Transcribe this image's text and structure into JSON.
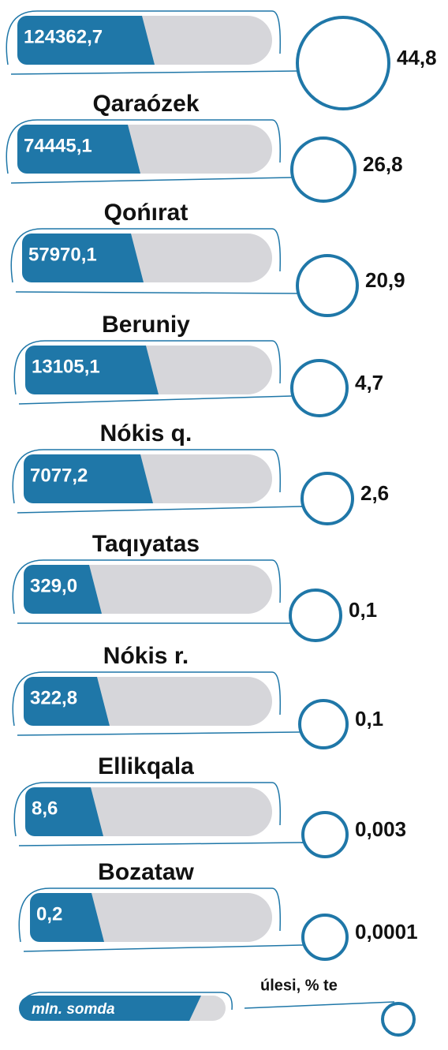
{
  "items": [
    {
      "amount": "124362,7",
      "share": "44,8"
    },
    {
      "name": "Qaraózek",
      "amount": "74445,1",
      "share": "26,8"
    },
    {
      "name": "Qońırat",
      "amount": "57970,1",
      "share": "20,9"
    },
    {
      "name": "Beruniy",
      "amount": "13105,1",
      "share": "4,7"
    },
    {
      "name": "Nókis q.",
      "amount": "7077,2",
      "share": "2,6"
    },
    {
      "name": "Taqıyatas",
      "amount": "329,0",
      "share": "0,1"
    },
    {
      "name": "Nókis r.",
      "amount": "322,8",
      "share": "0,1"
    },
    {
      "name": "Ellikqala",
      "amount": "8,6",
      "share": "0,003"
    },
    {
      "name": "Bozataw",
      "amount": "0,2",
      "share": "0,0001"
    }
  ],
  "legend": {
    "amount": "mln. somda",
    "share": "úlesi, % te"
  }
}
